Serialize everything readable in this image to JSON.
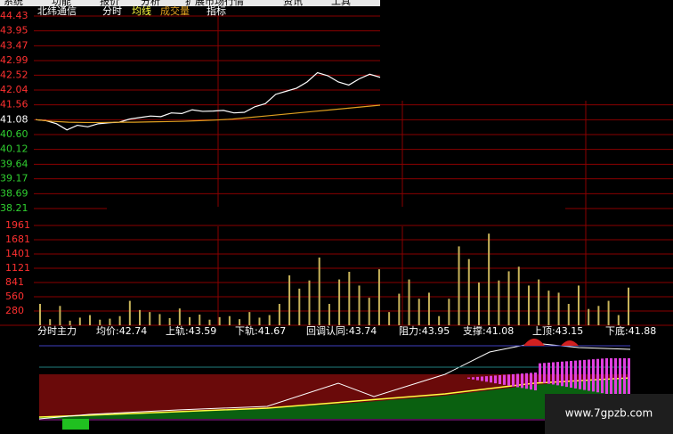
{
  "menu": [
    "系统",
    "功能",
    "报价",
    "分析",
    "扩展市场行情",
    "资讯",
    "工具"
  ],
  "toolbar": {
    "stock": "北纬通信",
    "items": [
      "分时",
      "均线",
      "成交量",
      "指标"
    ]
  },
  "chart_data": [
    {
      "type": "line",
      "ylim": [
        38.21,
        44.43
      ],
      "yticks": [
        44.43,
        43.95,
        43.47,
        42.99,
        42.52,
        42.04,
        41.56,
        41.08,
        {
          "value": 40.6,
          "label": "40.60"
        },
        40.12,
        39.64,
        39.17,
        38.69,
        38.21
      ],
      "reference": 41.08,
      "grid": true,
      "series": [
        {
          "name": "价格",
          "color": "#ffffff",
          "values": [
            41.08,
            41.05,
            40.95,
            40.75,
            40.9,
            40.85,
            40.95,
            40.98,
            41.0,
            41.1,
            41.15,
            41.2,
            41.18,
            41.3,
            41.28,
            41.4,
            41.35,
            41.36,
            41.38,
            41.3,
            41.32,
            41.5,
            41.6,
            41.9,
            42.0,
            42.1,
            42.3,
            42.6,
            42.5,
            42.3,
            42.2,
            42.4,
            42.55,
            42.45
          ]
        },
        {
          "name": "均线",
          "color": "#e0a020",
          "values": [
            41.08,
            41.03,
            41.0,
            40.99,
            40.99,
            41.0,
            41.0,
            41.01,
            41.02,
            41.03,
            41.05,
            41.07,
            41.1,
            41.15,
            41.2,
            41.25,
            41.3,
            41.35,
            41.4,
            41.45,
            41.5,
            41.55
          ]
        }
      ]
    },
    {
      "type": "bar",
      "ylim": [
        0,
        2240
      ],
      "yticks": [
        1961,
        1681,
        1401,
        1121,
        841,
        560,
        280
      ],
      "color": "#c8b45a",
      "values": [
        420,
        120,
        380,
        90,
        150,
        200,
        110,
        130,
        180,
        480,
        300,
        260,
        220,
        140,
        330,
        160,
        210,
        110,
        160,
        180,
        120,
        260,
        150,
        200,
        420,
        980,
        720,
        880,
        1330,
        420,
        900,
        1050,
        780,
        540,
        1100,
        260,
        620,
        900,
        520,
        640,
        180,
        520,
        1550,
        1300,
        840,
        1800,
        880,
        1060,
        1150,
        780,
        900,
        680,
        640,
        420,
        780,
        320,
        380,
        480,
        200,
        740
      ]
    }
  ],
  "indicator": {
    "title": "分时主力",
    "items": [
      "均价:42.74",
      "上轨:43.59",
      "下轨:41.67",
      "回调认同:43.74",
      "阻力:43.95",
      "支撑:41.08",
      "上顶:43.15",
      "下底:41.88"
    ]
  },
  "watermark": "www.7gpzb.com"
}
